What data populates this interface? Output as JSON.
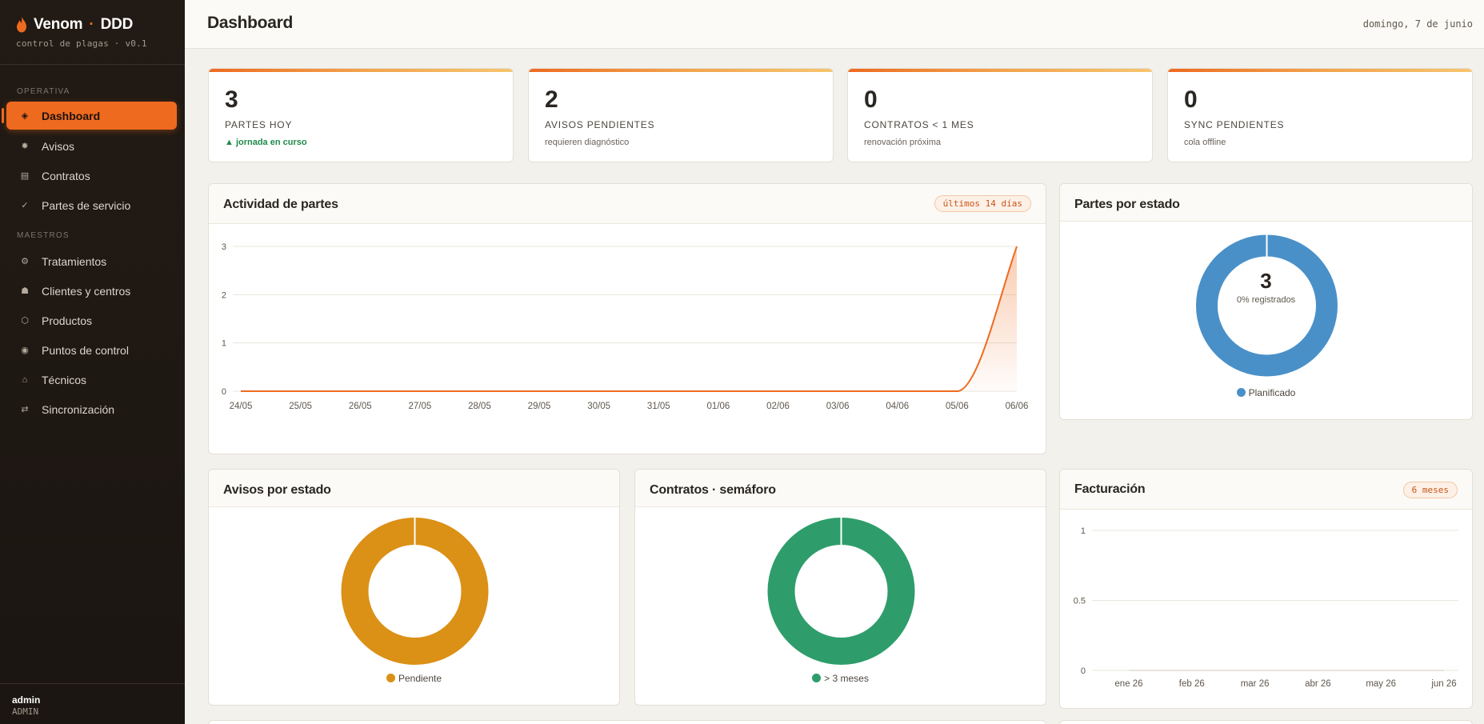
{
  "brand": {
    "name": "Venom",
    "dot": "·",
    "suffix": "DDD",
    "subtitle": "control de plagas · v0.1",
    "icon": "flame-icon"
  },
  "sidebar": {
    "sections": [
      {
        "label": "OPERATIVA"
      },
      {
        "label": "MAESTROS"
      }
    ],
    "items": [
      {
        "label": "Dashboard",
        "icon": "◈",
        "active": true
      },
      {
        "label": "Avisos",
        "icon": "✸"
      },
      {
        "label": "Contratos",
        "icon": "▤"
      },
      {
        "label": "Partes de servicio",
        "icon": "✓"
      },
      {
        "label": "Tratamientos",
        "icon": "⚙"
      },
      {
        "label": "Clientes y centros",
        "icon": "☗"
      },
      {
        "label": "Productos",
        "icon": "⬡"
      },
      {
        "label": "Puntos de control",
        "icon": "◉"
      },
      {
        "label": "Técnicos",
        "icon": "⌂"
      },
      {
        "label": "Sincronización",
        "icon": "⇄"
      }
    ]
  },
  "user": {
    "name": "admin",
    "role": "ADMIN"
  },
  "header": {
    "title": "Dashboard",
    "date": "domingo, 7 de junio"
  },
  "stats": [
    {
      "value": "3",
      "label": "PARTES HOY",
      "sub": "▲ jornada en curso",
      "sub_good": true
    },
    {
      "value": "2",
      "label": "AVISOS PENDIENTES",
      "sub": "requieren diagnóstico"
    },
    {
      "value": "0",
      "label": "CONTRATOS < 1 MES",
      "sub": "renovación próxima"
    },
    {
      "value": "0",
      "label": "SYNC PENDIENTES",
      "sub": "cola offline"
    }
  ],
  "activity": {
    "title": "Actividad de partes",
    "badge": "últimos 14 días",
    "chart_data": {
      "type": "area",
      "x": [
        "24/05",
        "25/05",
        "26/05",
        "27/05",
        "28/05",
        "29/05",
        "30/05",
        "31/05",
        "01/06",
        "02/06",
        "03/06",
        "04/06",
        "05/06",
        "06/06"
      ],
      "values": [
        0,
        0,
        0,
        0,
        0,
        0,
        0,
        0,
        0,
        0,
        0,
        0,
        0,
        3
      ],
      "ylim": [
        0,
        3
      ],
      "yticks": [
        "0",
        "1",
        "2",
        "3"
      ],
      "color": "#ee6a1f",
      "grid": true
    }
  },
  "partes_estado": {
    "title": "Partes por estado",
    "center_value": "3",
    "center_label": "0% registrados",
    "chart_data": {
      "type": "pie",
      "categories": [
        "Planificado"
      ],
      "values": [
        3
      ],
      "colors": [
        "#4a90c8"
      ]
    }
  },
  "avisos_estado": {
    "title": "Avisos por estado",
    "chart_data": {
      "type": "pie",
      "categories": [
        "Pendiente"
      ],
      "values": [
        2
      ],
      "colors": [
        "#db9016"
      ]
    }
  },
  "contratos_semaforo": {
    "title": "Contratos · semáforo",
    "chart_data": {
      "type": "pie",
      "categories": [
        "> 3 meses"
      ],
      "values": [
        1
      ],
      "colors": [
        "#2e9d6b"
      ]
    }
  },
  "facturacion": {
    "title": "Facturación",
    "badge": "6 meses",
    "chart_data": {
      "type": "line",
      "x": [
        "ene 26",
        "feb 26",
        "mar 26",
        "abr 26",
        "may 26",
        "jun 26"
      ],
      "values": [
        0,
        0,
        0,
        0,
        0,
        0
      ],
      "ylim": [
        0,
        1
      ],
      "yticks": [
        "0",
        "0.5",
        "1"
      ],
      "grid": true
    }
  }
}
